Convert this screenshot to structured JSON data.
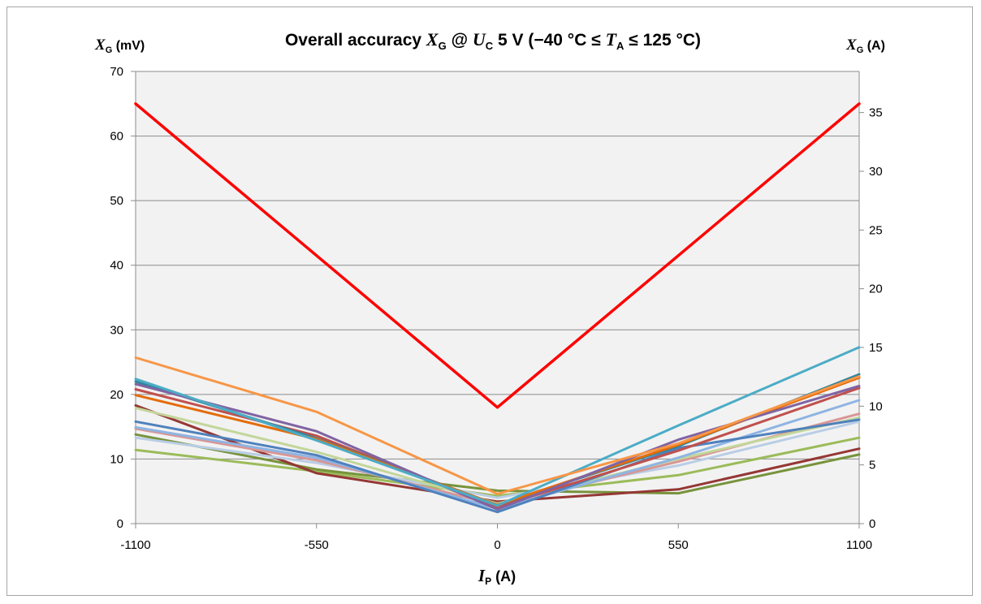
{
  "chart_data": {
    "type": "line",
    "title": {
      "pre": "Overall accuracy ",
      "x_sym": "X",
      "x_sub": "G",
      "mid": " @ ",
      "u_sym": "U",
      "u_sub": "C",
      "mid2": " 5 V (−40 °C ≤ ",
      "t_sym": "T",
      "t_sub": "A",
      "post": " ≤ 125 °C)"
    },
    "y_left_label": {
      "sym": "X",
      "sub": "G",
      "unit": " (mV)"
    },
    "y_right_label": {
      "sym": "X",
      "sub": "G",
      "unit": " (A)"
    },
    "x_label": {
      "sym": "I",
      "sub": "P",
      "unit": " (A)"
    },
    "x": [
      -1100,
      -550,
      0,
      550,
      1100
    ],
    "x_tick_labels": [
      "-1100",
      "-550",
      "0",
      "550",
      "1100"
    ],
    "y_left_range": [
      0,
      70
    ],
    "y_left_ticks": [
      0,
      10,
      20,
      30,
      40,
      50,
      60,
      70
    ],
    "y_right_range": [
      0,
      38.5
    ],
    "y_right_ticks": [
      0,
      5,
      10,
      15,
      20,
      25,
      30,
      35
    ],
    "grid": "horizontal",
    "plot_background": "#f2f2f2",
    "series": [
      {
        "color": "#9bbb59",
        "values": [
          11.4,
          8.1,
          4.3,
          7.5,
          13.3
        ]
      },
      {
        "color": "#77933c",
        "values": [
          13.8,
          8.4,
          5.1,
          4.7,
          10.7
        ]
      },
      {
        "color": "#953735",
        "values": [
          18.3,
          7.8,
          3.4,
          5.3,
          11.6
        ]
      },
      {
        "color": "#b9cde5",
        "values": [
          13.3,
          9.4,
          4.0,
          9.0,
          15.8
        ]
      },
      {
        "color": "#d99694",
        "values": [
          14.7,
          9.8,
          2.9,
          9.6,
          17.0
        ]
      },
      {
        "color": "#c3d69b",
        "values": [
          17.9,
          11.1,
          3.1,
          10.0,
          16.4
        ]
      },
      {
        "color": "#8eb4e3",
        "values": [
          14.9,
          10.2,
          2.3,
          10.2,
          19.1
        ]
      },
      {
        "color": "#4f81bd",
        "values": [
          15.8,
          10.6,
          1.8,
          11.7,
          16.1
        ]
      },
      {
        "color": "#c0504d",
        "values": [
          20.8,
          13.6,
          2.6,
          11.3,
          21.0
        ]
      },
      {
        "color": "#31859c",
        "values": [
          22.0,
          13.2,
          2.9,
          12.0,
          23.1
        ]
      },
      {
        "color": "#e46c0a",
        "values": [
          19.9,
          13.1,
          2.9,
          12.2,
          22.6
        ]
      },
      {
        "color": "#8064a2",
        "values": [
          21.6,
          14.3,
          2.2,
          13.0,
          21.3
        ]
      },
      {
        "color": "#4bacc6",
        "values": [
          22.4,
          12.9,
          2.8,
          15.2,
          27.3
        ]
      },
      {
        "color": "#f79646",
        "values": [
          25.7,
          17.3,
          4.6,
          12.4,
          22.8
        ]
      },
      {
        "color": "#ff0000",
        "values": [
          65.0,
          41.5,
          18.0,
          41.5,
          65.0
        ]
      }
    ]
  }
}
